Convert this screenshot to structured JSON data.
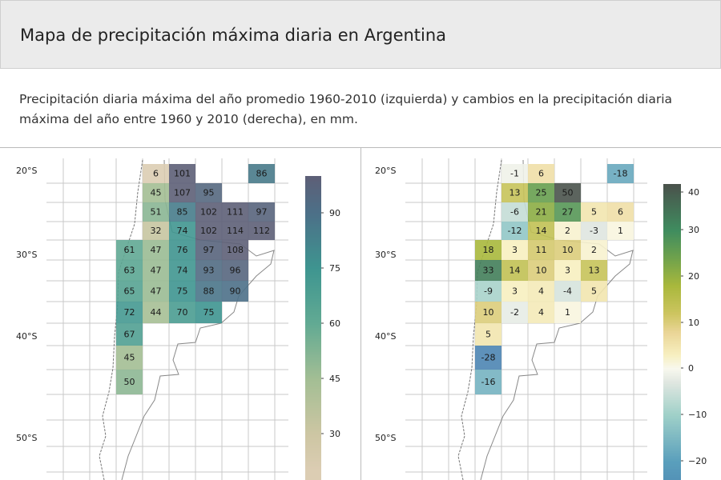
{
  "header": {
    "title": "Mapa de precipitación máxima diaria en Argentina"
  },
  "description": "Precipitación diaria máxima del año promedio 1960-2010 (izquierda) y cambios en la precipitación diaria máxima del año entre 1960 y 2010 (derecha), en mm.",
  "chart_data": [
    {
      "type": "heatmap",
      "title": "",
      "lat_labels": [
        "20°S",
        "30°S",
        "40°S",
        "50°S"
      ],
      "grid": [
        [
          null,
          6,
          101,
          null,
          null,
          86
        ],
        [
          null,
          45,
          107,
          95,
          null,
          null
        ],
        [
          null,
          51,
          85,
          102,
          111,
          97
        ],
        [
          null,
          32,
          74,
          102,
          114,
          112
        ],
        [
          61,
          47,
          76,
          97,
          108,
          null
        ],
        [
          63,
          47,
          74,
          93,
          96,
          null
        ],
        [
          65,
          47,
          75,
          88,
          90,
          null
        ],
        [
          72,
          44,
          70,
          75,
          null,
          null
        ],
        [
          67,
          null,
          null,
          null,
          null,
          null
        ],
        [
          45,
          null,
          null,
          null,
          null,
          null
        ],
        [
          50,
          null,
          null,
          null,
          null,
          null
        ]
      ],
      "colorbar": {
        "ticks": [
          30,
          45,
          60,
          75,
          90
        ],
        "tick_labels": [
          "30",
          "45",
          "60",
          "75",
          "90"
        ],
        "range": [
          20,
          100
        ]
      },
      "colormap": [
        [
          20,
          "#dccdb3"
        ],
        [
          30,
          "#cdc6a3"
        ],
        [
          45,
          "#a3be94"
        ],
        [
          60,
          "#62aa93"
        ],
        [
          75,
          "#3e9590"
        ],
        [
          90,
          "#4c7088"
        ],
        [
          100,
          "#5d5f77"
        ]
      ]
    },
    {
      "type": "heatmap",
      "title": "",
      "lat_labels": [
        "20°S",
        "30°S",
        "40°S",
        "50°S"
      ],
      "grid": [
        [
          null,
          -1,
          6,
          null,
          null,
          -18
        ],
        [
          null,
          13,
          25,
          50,
          null,
          null
        ],
        [
          null,
          -6,
          21,
          27,
          5,
          6
        ],
        [
          null,
          -12,
          14,
          2,
          -3,
          1
        ],
        [
          18,
          3,
          11,
          10,
          2,
          null
        ],
        [
          33,
          14,
          10,
          3,
          13,
          null
        ],
        [
          -9,
          3,
          4,
          -4,
          5,
          null
        ],
        [
          10,
          -2,
          4,
          1,
          null,
          null
        ],
        [
          5,
          null,
          null,
          null,
          null,
          null
        ],
        [
          -28,
          null,
          null,
          null,
          null,
          null
        ],
        [
          -16,
          null,
          null,
          null,
          null,
          null
        ]
      ],
      "colorbar": {
        "ticks": [
          -20,
          -10,
          0,
          10,
          20,
          30,
          40
        ],
        "tick_labels": [
          "−20",
          "−10",
          "0",
          "10",
          "20",
          "30",
          "40"
        ],
        "range": [
          -25,
          42
        ]
      },
      "colormap": [
        [
          -30,
          "#4a7fb0"
        ],
        [
          -20,
          "#5a9fbc"
        ],
        [
          -10,
          "#9fd0c8"
        ],
        [
          -3,
          "#dfe6e0"
        ],
        [
          0,
          "#f8f8ee"
        ],
        [
          3,
          "#f7efc0"
        ],
        [
          8,
          "#ead596"
        ],
        [
          12,
          "#cdc560"
        ],
        [
          18,
          "#a9b83c"
        ],
        [
          24,
          "#6fa24c"
        ],
        [
          30,
          "#3f8c5f"
        ],
        [
          42,
          "#4a534c"
        ]
      ]
    }
  ]
}
